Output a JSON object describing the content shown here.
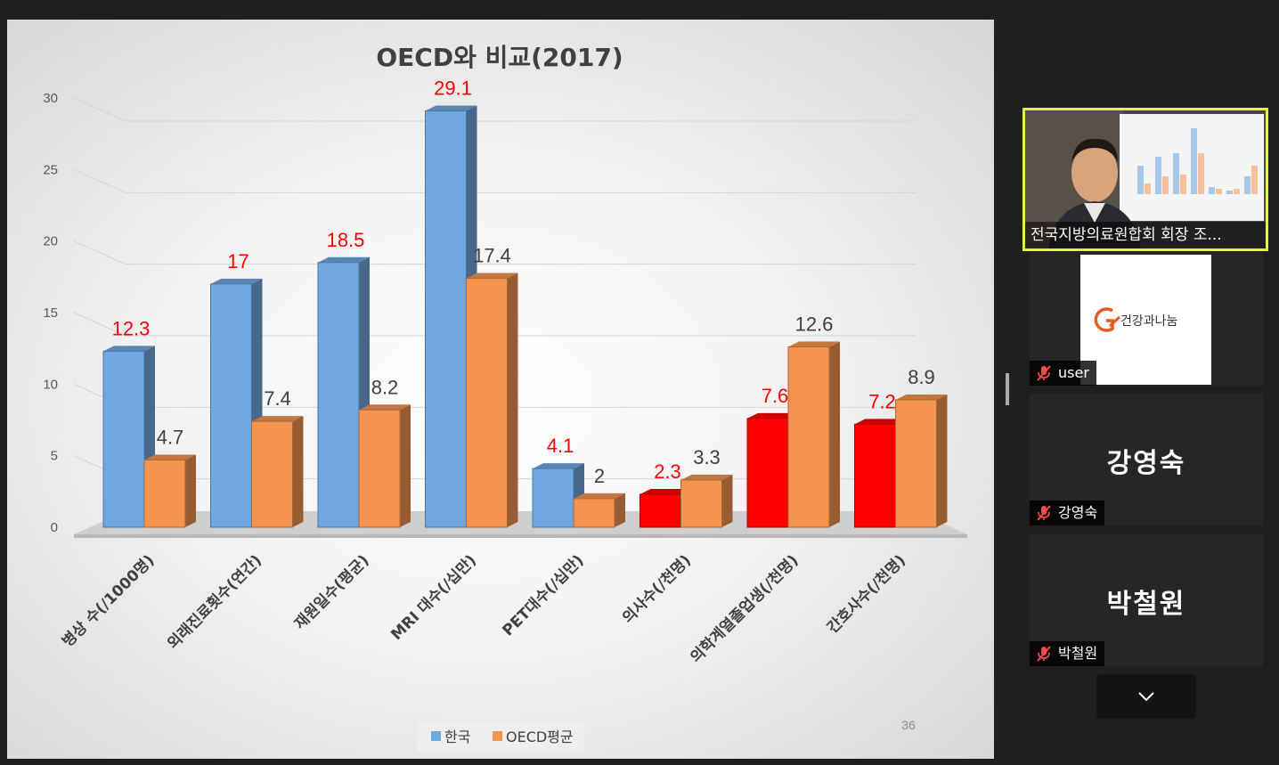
{
  "slide": {
    "title": "OECD와 비교(2017)",
    "page_number": "36"
  },
  "chart_data": {
    "type": "bar",
    "title": "OECD와 비교(2017)",
    "categories": [
      "병상 수(/1000명)",
      "외래진료횟수(연간)",
      "재원일수(평균)",
      "MRI 대수(/십만)",
      "PET대수(/십만)",
      "의사수(/천명)",
      "의학계열졸업생(/천명)",
      "간호사수(/천명)"
    ],
    "series": [
      {
        "name": "한국",
        "values": [
          12.3,
          17,
          18.5,
          29.1,
          4.1,
          2.3,
          7.6,
          7.2
        ]
      },
      {
        "name": "OECD평균",
        "values": [
          4.7,
          7.4,
          8.2,
          17.4,
          2,
          3.3,
          12.6,
          8.9
        ]
      }
    ],
    "data_labels": {
      "korea": [
        "12.3",
        "17",
        "18.5",
        "29.1",
        "4.1",
        "2.3",
        "7.6",
        "7.2"
      ],
      "oecd": [
        "4.7",
        "7.4",
        "8.2",
        "17.4",
        "2",
        "3.3",
        "12.6",
        "8.9"
      ]
    },
    "yticks": [
      "0",
      "5",
      "10",
      "15",
      "20",
      "25",
      "30"
    ],
    "ylim": [
      0,
      30
    ],
    "grid": true,
    "legend": "bottom",
    "colors": {
      "korea": "#6fa8e0",
      "korea_highlight": "#ff0000",
      "oecd": "#f4944f",
      "value_label_korea": "#ff0000"
    }
  },
  "participants": {
    "speaker": {
      "name": "전국지방의료원합회 회장 조..."
    },
    "user": {
      "name": "user",
      "avatar_text": "건강과나눔",
      "mic_icon": "mic-muted-icon"
    },
    "kang": {
      "display_name": "강영숙",
      "name": "강영숙",
      "mic_icon": "mic-muted-icon"
    },
    "park": {
      "display_name": "박철원",
      "name": "박철원",
      "mic_icon": "mic-muted-icon"
    }
  },
  "controls": {
    "more_icon": "chevron-down-icon"
  }
}
